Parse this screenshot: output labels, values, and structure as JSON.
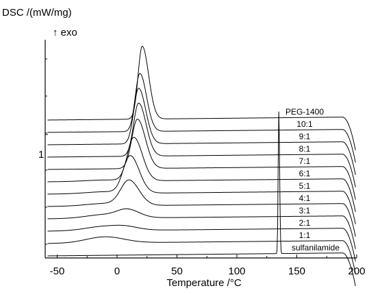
{
  "chart_data": {
    "type": "line",
    "ylabel": "DSC /(mW/mg)",
    "exo_label": "↑ exo",
    "scale_bar_label": "1",
    "xlabel": "Temperature /°C",
    "xlim": [
      -60,
      200
    ],
    "x_ticks": [
      -50,
      0,
      50,
      100,
      150,
      200
    ],
    "x_tick_labels": [
      "-50",
      "0",
      "50",
      "100",
      "150",
      "200"
    ],
    "grid": false,
    "legend": "none",
    "series": [
      {
        "name": "PEG-1400",
        "offset": 10,
        "curve": {
          "broad": 0,
          "peak_x": 21,
          "peak_h": 5.9,
          "peak_w": 4.2,
          "skew": 0.9
        }
      },
      {
        "name": "10:1",
        "offset": 9,
        "curve": {
          "broad": 0,
          "peak_x": 19,
          "peak_h": 4.7,
          "peak_w": 4.5,
          "skew": 0.8
        }
      },
      {
        "name": "9:1",
        "offset": 8,
        "curve": {
          "broad": 0,
          "peak_x": 18,
          "peak_h": 4.5,
          "peak_w": 4.8,
          "skew": 0.8
        }
      },
      {
        "name": "8:1",
        "offset": 7,
        "curve": {
          "broad": 0,
          "peak_x": 18,
          "peak_h": 4.3,
          "peak_w": 5.0,
          "skew": 0.8
        }
      },
      {
        "name": "7:1",
        "offset": 6,
        "curve": {
          "broad": 0,
          "peak_x": 17,
          "peak_h": 4.0,
          "peak_w": 5.5,
          "skew": 0.7
        }
      },
      {
        "name": "6:1",
        "offset": 5,
        "curve": {
          "broad": 0.1,
          "peak_x": 14,
          "peak_h": 3.5,
          "peak_w": 6.0,
          "skew": 0.6
        }
      },
      {
        "name": "5:1",
        "offset": 4,
        "curve": {
          "broad": 0.15,
          "peak_x": 11,
          "peak_h": 3.0,
          "peak_w": 6.5,
          "skew": 0.5
        }
      },
      {
        "name": "4:1",
        "offset": 3,
        "curve": {
          "broad": 0.2,
          "peak_x": 10,
          "peak_h": 2.0,
          "peak_w": 7.5,
          "skew": 0.4
        }
      },
      {
        "name": "3:1",
        "offset": 2,
        "curve": {
          "broad": 0.3,
          "peak_x": 9,
          "peak_h": 0.6,
          "peak_w": 9,
          "skew": 0.3
        }
      },
      {
        "name": "2:1",
        "offset": 1,
        "curve": {
          "broad": 0.35,
          "peak_x": 8,
          "peak_h": 0.2,
          "peak_w": 10,
          "skew": 0.3
        }
      },
      {
        "name": "1:1",
        "offset": 0,
        "curve": {
          "broad": 0.5,
          "peak_x": 0,
          "peak_h": 0,
          "peak_w": 10,
          "skew": 0
        }
      },
      {
        "name": "sulfanilamide",
        "offset": -1,
        "curve": {
          "broad": 0,
          "peak_x": 135,
          "peak_h": 11.5,
          "peak_w": 0.6,
          "skew": 0.5
        }
      }
    ]
  }
}
